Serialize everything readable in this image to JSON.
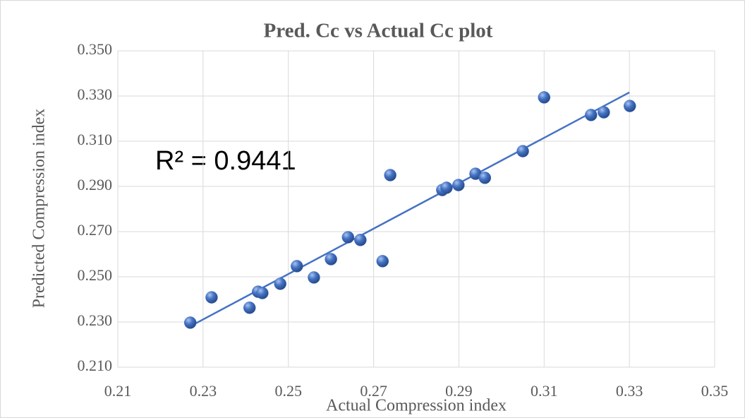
{
  "chart_data": {
    "type": "scatter",
    "title": "Pred. Cc vs Actual  Cc plot",
    "x_label": "Actual Compression index",
    "y_label": "Predicted Compression index",
    "annotation": "R² = 0.9441",
    "color": "#4472c4",
    "grid": true,
    "xlim": [
      0.21,
      0.35
    ],
    "ylim": [
      0.21,
      0.35
    ],
    "xticks": [
      0.21,
      0.23,
      0.25,
      0.27,
      0.29,
      0.31,
      0.33,
      0.35
    ],
    "yticks": [
      {
        "value": 0.21,
        "label": "0.210"
      },
      {
        "value": 0.23,
        "label": "0.230"
      },
      {
        "value": 0.25,
        "label": "0.250"
      },
      {
        "value": 0.27,
        "label": "0.270"
      },
      {
        "value": 0.29,
        "label": "0.290"
      },
      {
        "value": 0.31,
        "label": "0.310"
      },
      {
        "value": 0.33,
        "label": "0.330"
      },
      {
        "value": 0.35,
        "label": "0.350"
      }
    ],
    "x": [
      0.227,
      0.232,
      0.2409,
      0.2429,
      0.2439,
      0.2481,
      0.252,
      0.256,
      0.26,
      0.264,
      0.2669,
      0.2721,
      0.2739,
      0.2861,
      0.2871,
      0.2899,
      0.2939,
      0.2961,
      0.305,
      0.31,
      0.321,
      0.324,
      0.3301
    ],
    "values": [
      0.2297,
      0.2409,
      0.2363,
      0.2434,
      0.2428,
      0.2469,
      0.2547,
      0.2497,
      0.2578,
      0.2675,
      0.2663,
      0.2569,
      0.295,
      0.2884,
      0.2894,
      0.2906,
      0.2956,
      0.2938,
      0.3056,
      0.3294,
      0.3216,
      0.3228,
      0.3256
    ],
    "trendline": {
      "x": [
        0.227,
        0.33
      ],
      "values": [
        0.2281,
        0.3316
      ]
    }
  }
}
